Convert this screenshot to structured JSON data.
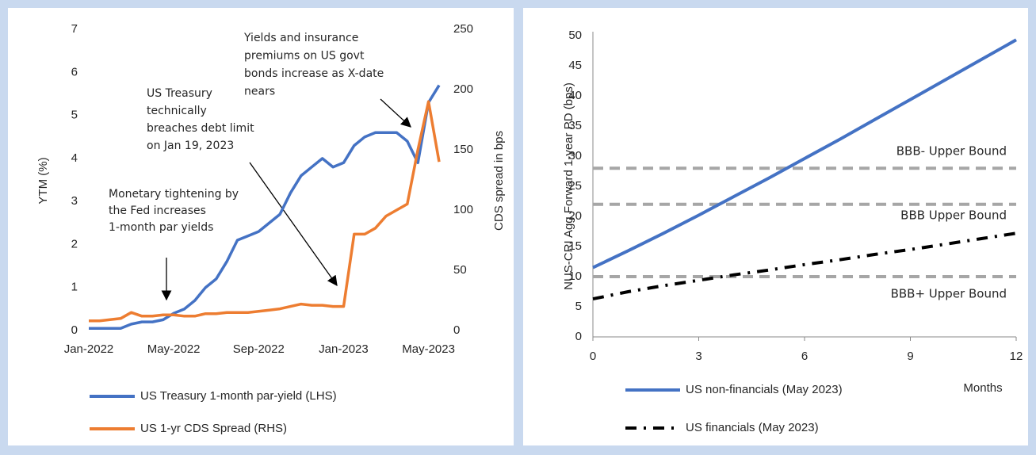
{
  "chart_data": [
    {
      "type": "line",
      "categories": [
        "Jan-2022",
        null,
        null,
        null,
        null,
        null,
        null,
        null,
        "May-2022",
        null,
        null,
        null,
        null,
        null,
        null,
        null,
        "Sep-2022",
        null,
        null,
        null,
        null,
        null,
        null,
        null,
        "Jan-2023",
        null,
        null,
        null,
        null,
        null,
        null,
        null,
        "May-2023",
        null
      ],
      "series": [
        {
          "name": "US Treasury 1-month par-yield (LHS)",
          "color": "#4472c4",
          "values": [
            0.05,
            0.05,
            0.05,
            0.05,
            0.15,
            0.2,
            0.2,
            0.25,
            0.4,
            0.5,
            0.7,
            1.0,
            1.2,
            1.6,
            2.1,
            2.2,
            2.3,
            2.5,
            2.7,
            3.2,
            3.6,
            3.8,
            4.0,
            3.8,
            3.9,
            4.3,
            4.5,
            4.6,
            4.6,
            4.6,
            4.4,
            3.9,
            5.3,
            5.7
          ]
        },
        {
          "name": "US 1-yr CDS Spread (RHS)",
          "color": "#ed7d31",
          "axis": "y2",
          "values": [
            8,
            8,
            9,
            10,
            15,
            12,
            12,
            13,
            13,
            12,
            12,
            14,
            14,
            15,
            15,
            15,
            16,
            17,
            18,
            20,
            22,
            21,
            21,
            20,
            20,
            80,
            80,
            85,
            95,
            100,
            105,
            150,
            190,
            140
          ]
        }
      ],
      "ylabel": "YTM (%)",
      "y2label": "CDS spread in bps",
      "ylim": [
        0,
        7
      ],
      "yticks": [
        0,
        1,
        2,
        3,
        4,
        5,
        6,
        7
      ],
      "y2lim": [
        0,
        250
      ],
      "y2ticks": [
        0,
        50,
        100,
        150,
        200,
        250
      ],
      "annotations": [
        [
          "Monetary tightening by",
          "the Fed increases",
          "1-month par yields"
        ],
        [
          "US Treasury",
          "technically",
          "breaches debt limit",
          "on Jan 19, 2023"
        ],
        [
          "Yields and insurance",
          "premiums on US govt",
          "bonds increase as X-date",
          "nears"
        ]
      ]
    },
    {
      "type": "line",
      "x": [
        0,
        1,
        2,
        3,
        4,
        5,
        6,
        7,
        8,
        9,
        10,
        11,
        12
      ],
      "series": [
        {
          "name": "US non-financials (May 2023)",
          "color": "#4472c4",
          "style": "solid",
          "values": [
            11.5,
            14.3,
            17.2,
            20.2,
            23.3,
            26.4,
            29.6,
            32.8,
            36.1,
            39.4,
            42.7,
            46.0,
            49.3
          ]
        },
        {
          "name": "US financials (May 2023)",
          "color": "#000000",
          "style": "dash-dot",
          "values": [
            6.3,
            7.5,
            8.5,
            9.4,
            10.3,
            11.1,
            12.0,
            12.8,
            13.7,
            14.5,
            15.4,
            16.3,
            17.2
          ]
        }
      ],
      "xlabel": "Months",
      "ylabel": "NUS-CRI Agg Forward 1-year PD (bps)",
      "xlim": [
        0,
        12
      ],
      "xticks": [
        0,
        3,
        6,
        9,
        12
      ],
      "ylim": [
        0,
        50
      ],
      "yticks": [
        0,
        5,
        10,
        15,
        20,
        25,
        30,
        35,
        40,
        45,
        50
      ],
      "hlines": [
        {
          "value": 28,
          "label": "BBB- Upper Bound"
        },
        {
          "value": 22,
          "label": "BBB Upper Bound"
        },
        {
          "value": 10,
          "label": "BBB+ Upper Bound"
        }
      ],
      "hline_color": "#a6a6a6"
    }
  ]
}
